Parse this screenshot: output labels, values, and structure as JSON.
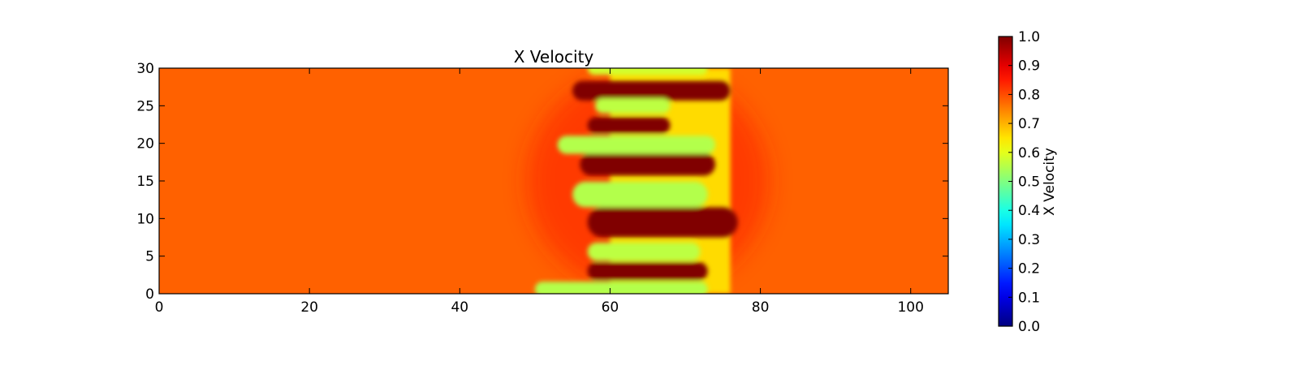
{
  "chart_data": {
    "type": "heatmap",
    "title": "X Velocity",
    "xlabel": "",
    "ylabel": "",
    "xlim": [
      0,
      105
    ],
    "ylim": [
      0,
      30
    ],
    "x_ticks": [
      "0",
      "20",
      "40",
      "60",
      "80",
      "100"
    ],
    "y_ticks": [
      "0",
      "5",
      "10",
      "15",
      "20",
      "25",
      "30"
    ],
    "background_value": 0.78,
    "colormap": "jet",
    "colorbar": {
      "label": "X Velocity",
      "range": [
        0.0,
        1.0
      ],
      "ticks": [
        "0.0",
        "0.1",
        "0.2",
        "0.3",
        "0.4",
        "0.5",
        "0.6",
        "0.7",
        "0.8",
        "0.9",
        "1.0"
      ]
    },
    "streaks": [
      {
        "x0": 55,
        "x1": 76,
        "y": 27,
        "half_width": 1.3,
        "value": 1.0
      },
      {
        "x0": 57,
        "x1": 68,
        "y": 22.4,
        "half_width": 1.1,
        "value": 1.0
      },
      {
        "x0": 56,
        "x1": 74,
        "y": 17.2,
        "half_width": 1.5,
        "value": 1.0
      },
      {
        "x0": 57,
        "x1": 77,
        "y": 9.5,
        "half_width": 2.0,
        "value": 1.0
      },
      {
        "x0": 57,
        "x1": 73,
        "y": 3.0,
        "half_width": 1.2,
        "value": 1.0
      },
      {
        "x0": 57,
        "x1": 73,
        "y": 30,
        "half_width": 0.9,
        "value": 0.58
      },
      {
        "x0": 58,
        "x1": 68,
        "y": 25,
        "half_width": 1.0,
        "value": 0.56
      },
      {
        "x0": 53,
        "x1": 74,
        "y": 19.8,
        "half_width": 1.2,
        "value": 0.55
      },
      {
        "x0": 55,
        "x1": 73,
        "y": 13.2,
        "half_width": 1.7,
        "value": 0.55
      },
      {
        "x0": 57,
        "x1": 72,
        "y": 5.6,
        "half_width": 1.2,
        "value": 0.56
      },
      {
        "x0": 50,
        "x1": 73,
        "y": 0.6,
        "half_width": 1.0,
        "value": 0.55
      }
    ]
  }
}
